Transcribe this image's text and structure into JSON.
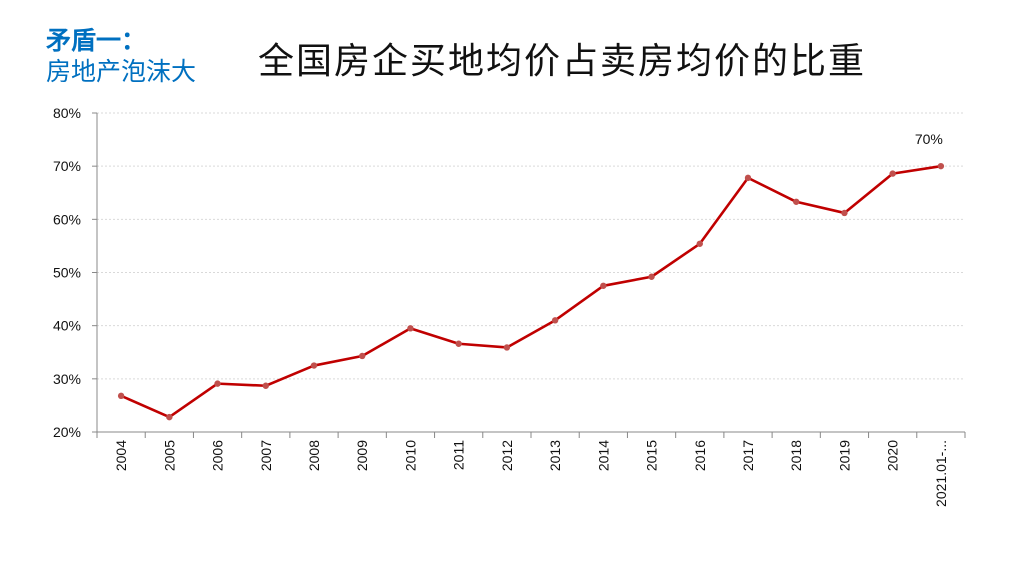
{
  "slide": {
    "side_title_line1": "矛盾一：",
    "side_title_line2": "房地产泡沫大",
    "main_title": "全国房企买地均价占卖房均价的比重"
  },
  "colors": {
    "line": "#c00000",
    "marker": "#c0504d",
    "side_title": "#0070c0",
    "grid": "#d9d9d9"
  },
  "chart_data": {
    "type": "line",
    "title": "全国房企买地均价占卖房均价的比重",
    "categories": [
      "2004",
      "2005",
      "2006",
      "2007",
      "2008",
      "2009",
      "2010",
      "2011",
      "2012",
      "2013",
      "2014",
      "2015",
      "2016",
      "2017",
      "2018",
      "2019",
      "2020",
      "2021.01-..."
    ],
    "series": [
      {
        "values": [
          26.8,
          22.8,
          29.1,
          28.7,
          32.5,
          34.3,
          39.5,
          36.6,
          35.9,
          41.0,
          47.5,
          49.2,
          55.4,
          67.8,
          63.3,
          61.2,
          68.6,
          70.0
        ]
      }
    ],
    "ylim": [
      20,
      80
    ],
    "yticks": [
      20,
      30,
      40,
      50,
      60,
      70,
      80
    ],
    "ytick_format": "%",
    "grid": true,
    "legend": "none",
    "annotations": [
      {
        "index": 17,
        "text": "70%"
      }
    ]
  }
}
